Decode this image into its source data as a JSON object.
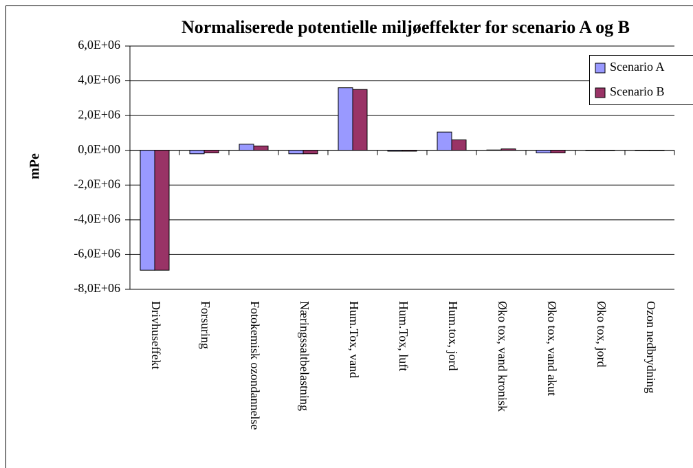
{
  "chart_data": {
    "type": "bar",
    "title": "Normaliserede potentielle miljøeffekter for scenario A og B",
    "y_label": "mPe",
    "categories": [
      "Drivhuseffekt",
      "Forsuring",
      "Fotokemisk ozondannelse",
      "Næringssaltbelastning",
      "Hum.Tox, vand",
      "Hum.Tox, luft",
      "Hum.tox, jord",
      "Øko tox, vand kronisk",
      "Øko tox, vand akut",
      "Øko tox, jord",
      "Ozon nedbrydning"
    ],
    "series": [
      {
        "name": "Scenario A",
        "color": "#9999ff",
        "values": [
          -6900000,
          -200000,
          350000,
          -200000,
          3600000,
          -50000,
          1050000,
          20000,
          -150000,
          0,
          0
        ]
      },
      {
        "name": "Scenario B",
        "color": "#993366",
        "values": [
          -6900000,
          -150000,
          250000,
          -200000,
          3500000,
          -50000,
          600000,
          80000,
          -150000,
          0,
          0
        ]
      }
    ],
    "ylim": [
      -8000000,
      6000000
    ],
    "yticks": [
      {
        "value": -8000000,
        "label": "-8,0E+06"
      },
      {
        "value": -6000000,
        "label": "-6,0E+06"
      },
      {
        "value": -4000000,
        "label": "-4,0E+06"
      },
      {
        "value": -2000000,
        "label": "-2,0E+06"
      },
      {
        "value": 0,
        "label": "0,0E+00"
      },
      {
        "value": 2000000,
        "label": "2,0E+06"
      },
      {
        "value": 4000000,
        "label": "4,0E+06"
      },
      {
        "value": 6000000,
        "label": "6,0E+06"
      }
    ],
    "grid": true,
    "legend": "upper right"
  }
}
